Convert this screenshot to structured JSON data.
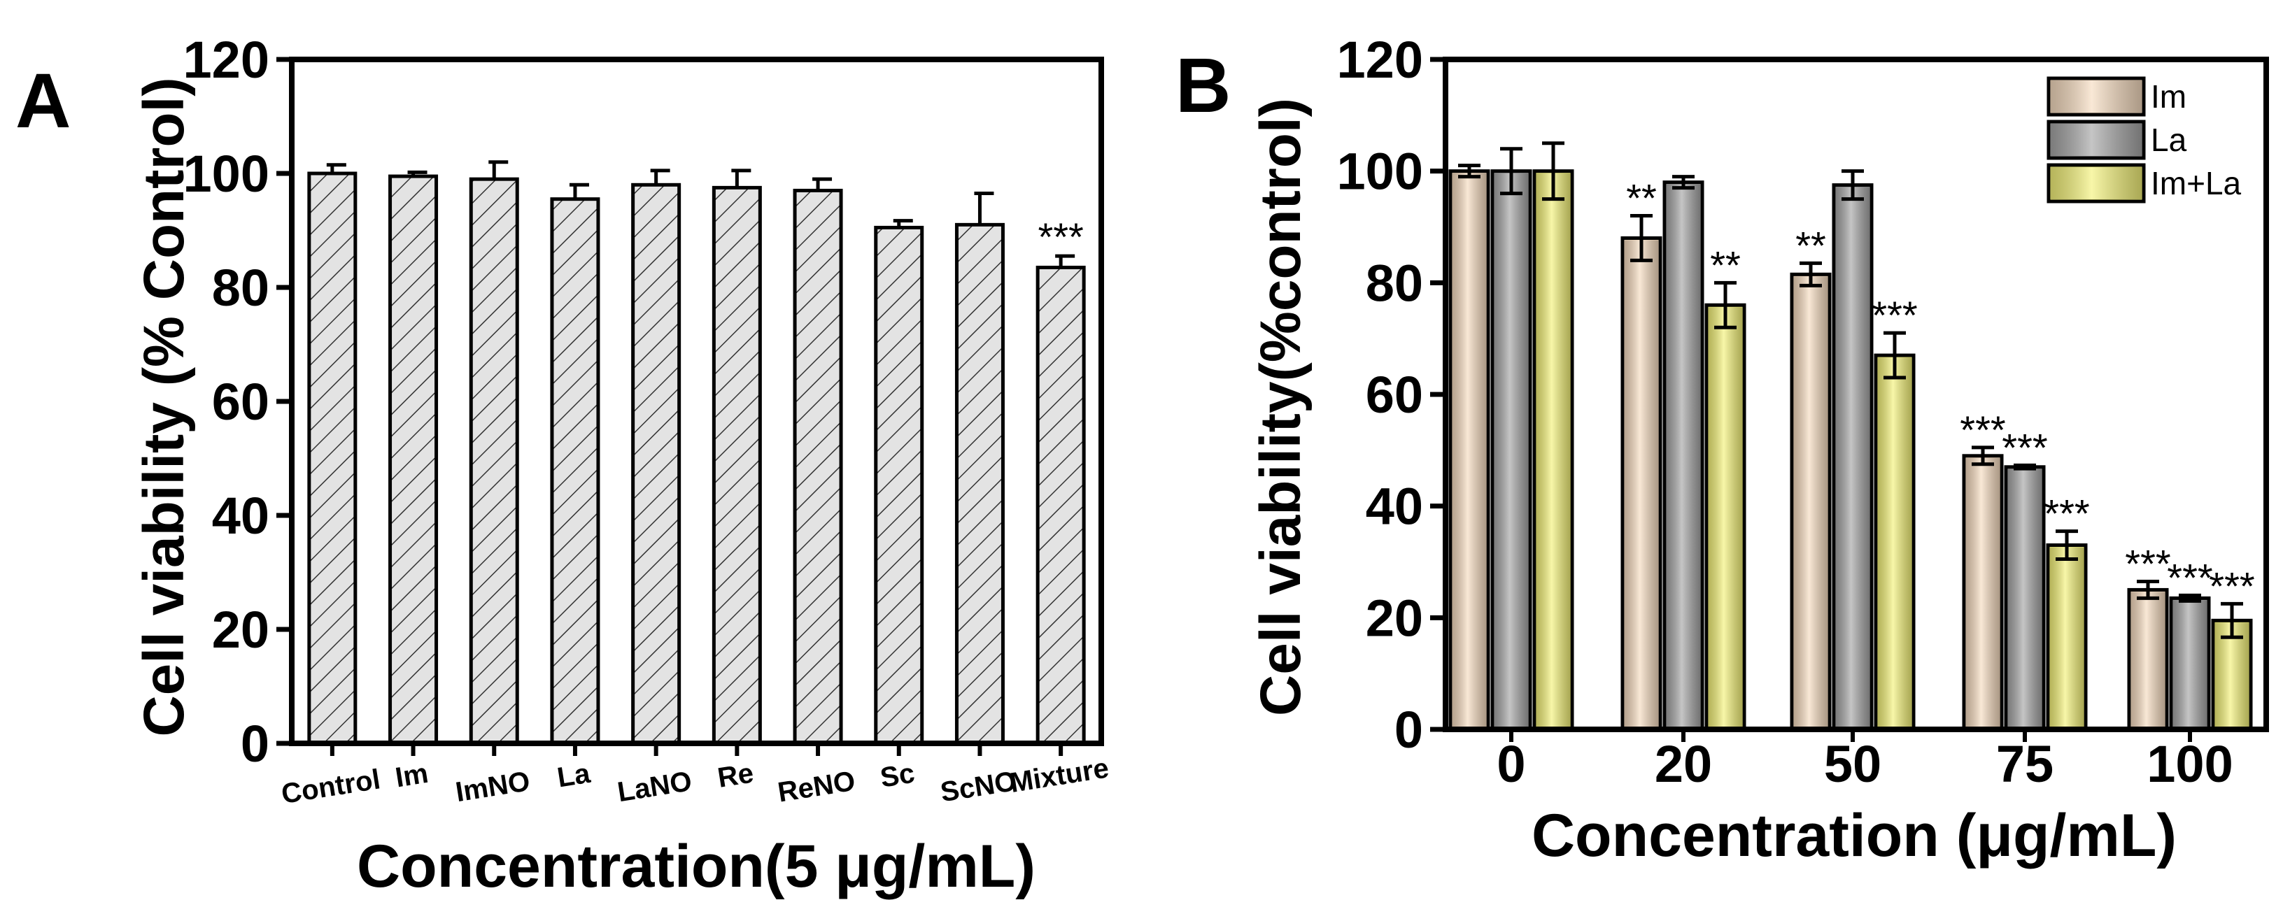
{
  "colors": {
    "axis": "#000000",
    "hatch_bar": "#d9d9d9",
    "im": "#f6dcc0",
    "la": "#a6a6a6",
    "im_la": "#f4f27a"
  },
  "chart_data": [
    {
      "panel_label": "A",
      "type": "bar",
      "pattern": "diagonal-hatch",
      "categories": [
        "Control",
        "Im",
        "ImNO",
        "La",
        "LaNO",
        "Re",
        "ReNO",
        "Sc",
        "ScNO",
        "Mixture"
      ],
      "values": [
        100,
        99.5,
        99,
        95.5,
        98,
        97.5,
        97,
        90.5,
        91,
        83.5
      ],
      "errors": [
        1.5,
        0.7,
        3,
        2.5,
        2.5,
        3,
        2,
        1.2,
        5.5,
        2
      ],
      "significance": [
        "",
        "",
        "",
        "",
        "",
        "",
        "",
        "",
        "",
        "***"
      ],
      "xlabel": "Concentration(5 μg/mL)",
      "ylabel": "Cell viability (% Control)",
      "ylim": [
        0,
        120
      ],
      "yticks": [
        "0",
        "20",
        "40",
        "60",
        "80",
        "100",
        "120"
      ]
    },
    {
      "panel_label": "B",
      "type": "bar",
      "categories": [
        "0",
        "20",
        "50",
        "75",
        "100"
      ],
      "series": [
        {
          "name": "Im",
          "values": [
            100,
            88,
            81.5,
            49,
            25
          ],
          "errors": [
            1,
            4,
            2,
            1.5,
            1.5
          ],
          "significance": [
            "",
            "**",
            "**",
            "***",
            "***"
          ]
        },
        {
          "name": "La",
          "values": [
            100,
            98,
            97.5,
            47,
            23.5
          ],
          "errors": [
            4,
            1,
            2.5,
            0.3,
            0.5
          ],
          "significance": [
            "",
            "",
            "",
            "***",
            "***"
          ]
        },
        {
          "name": "Im+La",
          "values": [
            100,
            76,
            67,
            33,
            19.5
          ],
          "errors": [
            5,
            4,
            4,
            2.5,
            3
          ],
          "significance": [
            "",
            "**",
            "***",
            "***",
            "***"
          ]
        }
      ],
      "xlabel": "Concentration (μg/mL)",
      "ylabel": "Cell viability(%control)",
      "ylim": [
        0,
        120
      ],
      "yticks": [
        "0",
        "20",
        "40",
        "60",
        "80",
        "100",
        "120"
      ],
      "legend_position": "top-right"
    }
  ]
}
